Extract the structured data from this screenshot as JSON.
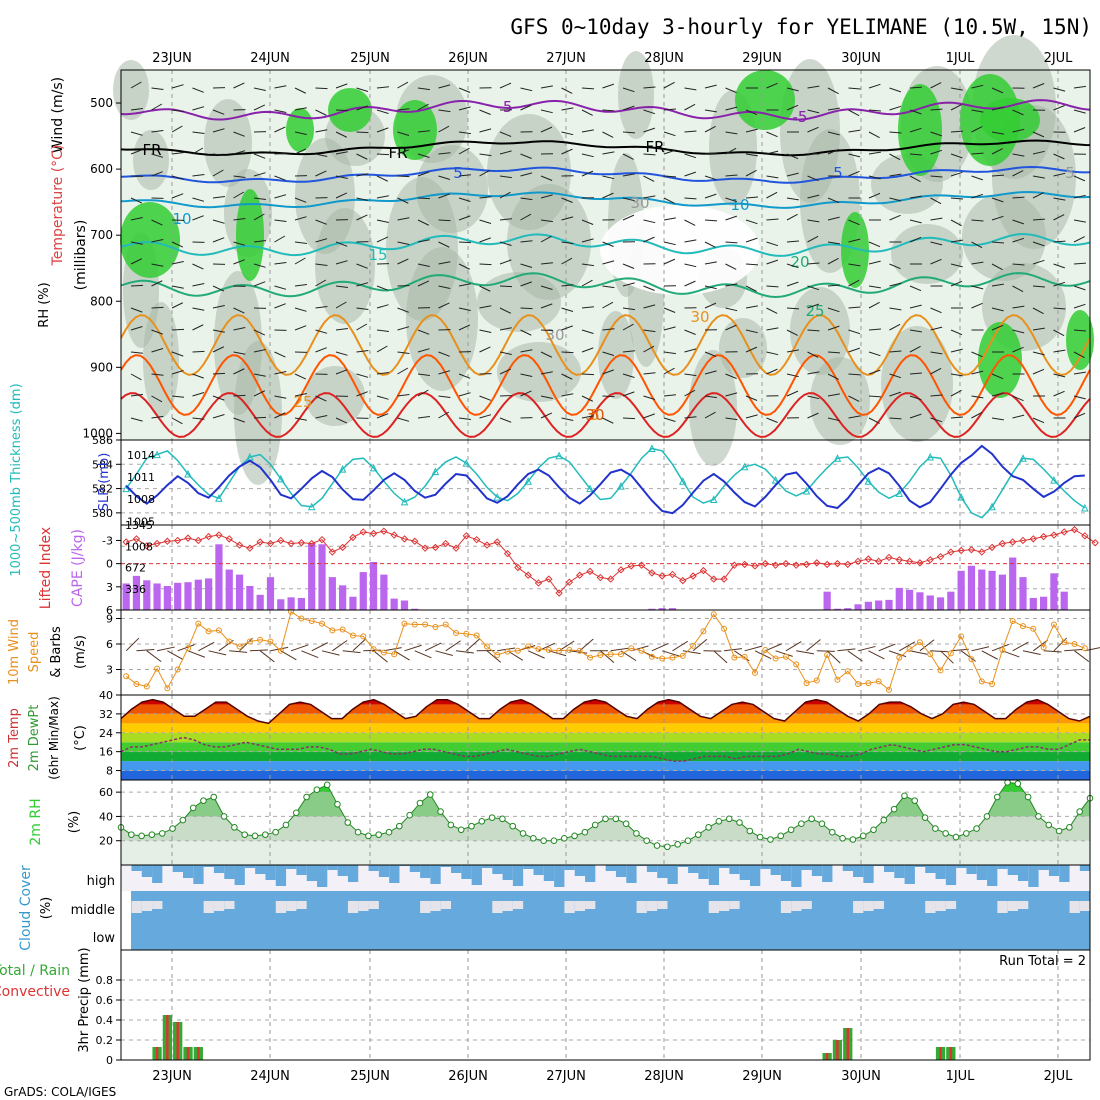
{
  "page": {
    "title": "GFS 0~10day 3-hourly for YELIMANE (10.5W, 15N)",
    "footer": "GrADS: COLA/IGES",
    "run_total": "Run Total = 2"
  },
  "time_axis": {
    "labels": [
      "23JUN",
      "24JUN",
      "25JUN",
      "26JUN",
      "27JUN",
      "28JUN",
      "29JUN",
      "30JUN",
      "1JUL",
      "2JUL"
    ],
    "note": "x values are 3-hourly steps from 22JUN 12Z (label positions at 24-hour intervals)"
  },
  "colors": {
    "rh_green": "#33cc33",
    "rh_light": "#e8f4e8",
    "rh_gray": "#a8b8a8",
    "thickness": "#22bbbb",
    "slp": "#2233cc",
    "lifted_index": "#dd3333",
    "cape_bar": "#bb66ee",
    "wind_speed": "#e8901c",
    "temp_red": "#cc0000",
    "temp_orange": "#ff8800",
    "dewpoint": "#33cc33",
    "rh2m": "#228822",
    "cloud": "#66aadd",
    "precip_total": "#33aa33",
    "precip_conv": "#dd3333"
  },
  "panels": {
    "upper_air": {
      "ylabel_wind": "Wind (m/s)",
      "ylabel_temp": "Temperature (°C)",
      "ylabel_rh": "RH (%)",
      "ylabel_units": "(millibars)",
      "yticks": [
        500,
        600,
        700,
        800,
        900,
        1000
      ],
      "contour_labels": [
        "-5",
        "-5",
        "FR",
        "FR",
        "FR",
        "5",
        "5",
        "10",
        "10",
        "15",
        "20",
        "25",
        "30",
        "5",
        "30",
        "25",
        "30",
        "30",
        "5"
      ]
    },
    "thickness_slp": {
      "ylabel_left": "1000~500mb Thickness (dm)",
      "ylabel_right": "SLP (mb)",
      "left_ticks": [
        580,
        582,
        584,
        586
      ],
      "right_ticks": [
        1005,
        1008,
        1011,
        1014
      ]
    },
    "cape_li": {
      "ylabel_left": "Lifted Index",
      "ylabel_right": "CAPE (J/kg)",
      "left_ticks": [
        -3,
        0,
        3,
        6
      ],
      "right_ticks": [
        336,
        672,
        1008,
        1345
      ]
    },
    "wind10m": {
      "ylabel_left": "10m Wind",
      "ylabel_mid": "Speed",
      "ylabel_right": "& Barbs",
      "units": "(m/s)",
      "ticks": [
        3,
        6,
        9
      ]
    },
    "temp2m": {
      "ylabel_a": "2m Temp",
      "ylabel_b": "2m DewPt",
      "ylabel_c": "(6hr Min/Max)",
      "units": "(°C)",
      "ticks": [
        8,
        16,
        24,
        32,
        40
      ]
    },
    "rh2m": {
      "ylabel": "2m RH",
      "units": "(%)",
      "ticks": [
        20,
        40,
        60
      ]
    },
    "cloud": {
      "ylabel": "Cloud Cover",
      "units": "(%)",
      "levels": [
        "high",
        "middle",
        "low"
      ]
    },
    "precip": {
      "ylabel_a": "Total / Rain",
      "ylabel_b": "Convective",
      "ylabel_c": "3hr Precip (mm)",
      "ticks": [
        0,
        0.2,
        0.4,
        0.6,
        0.8
      ]
    }
  },
  "chart_data": [
    {
      "type": "line",
      "name": "thickness",
      "title": "1000~500mb Thickness",
      "ylim": [
        579,
        586
      ],
      "x_start": "22JUN 12Z",
      "step_hours": 3,
      "values": [
        582.0,
        583.2,
        584.5,
        584.8,
        585.1,
        584.3,
        583.2,
        582.3,
        581.5,
        581.2,
        582.5,
        583.8,
        584.6,
        584.8,
        584.0,
        582.8,
        581.6,
        580.6,
        580.5,
        581.2,
        582.4,
        583.6,
        584.4,
        584.5,
        583.7,
        582.6,
        581.6,
        580.9,
        581.3,
        582.2,
        583.4,
        584.2,
        584.6,
        584.1,
        583.2,
        582.1,
        581.3,
        581.0,
        581.6,
        582.6,
        583.7,
        584.5,
        584.7,
        584.2,
        583.1,
        582.0,
        581.1,
        581.2,
        582.2,
        583.3,
        584.5,
        585.3,
        585.1,
        584.0,
        582.6,
        581.3,
        580.8,
        581.1,
        582.2,
        583.1,
        583.8,
        584.0,
        583.6,
        582.7,
        581.8,
        581.4,
        581.8,
        582.8,
        583.7,
        584.5,
        584.6,
        583.7,
        582.6,
        581.7,
        581.2,
        581.6,
        582.6,
        583.8,
        584.6,
        584.5,
        583.1,
        581.3,
        580.0,
        579.6,
        580.5,
        581.9,
        583.3,
        584.5,
        584.4,
        583.6,
        582.7,
        581.8,
        581.0,
        580.4
      ]
    },
    {
      "type": "line",
      "name": "slp",
      "title": "SLP",
      "ylim": [
        1004.5,
        1016
      ],
      "x_start": "22JUN 12Z",
      "step_hours": 3,
      "values": [
        1009.8,
        1008.4,
        1007.4,
        1008.5,
        1009.9,
        1011.1,
        1010.2,
        1008.8,
        1008.2,
        1009.6,
        1011.2,
        1012.4,
        1013.2,
        1012.3,
        1010.6,
        1008.6,
        1008.1,
        1009.4,
        1010.8,
        1011.8,
        1011.0,
        1009.3,
        1008.0,
        1007.9,
        1009.2,
        1010.6,
        1011.5,
        1010.6,
        1009.1,
        1008.2,
        1008.6,
        1010.1,
        1011.4,
        1011.2,
        1009.7,
        1008.1,
        1007.5,
        1008.4,
        1010.0,
        1011.4,
        1012.0,
        1011.2,
        1009.6,
        1008.2,
        1007.4,
        1008.5,
        1010.0,
        1011.6,
        1012.0,
        1011.2,
        1009.5,
        1007.8,
        1006.4,
        1006.1,
        1007.2,
        1008.9,
        1010.5,
        1011.4,
        1010.4,
        1008.9,
        1007.6,
        1007.0,
        1008.3,
        1009.9,
        1011.3,
        1011.6,
        1010.1,
        1008.4,
        1007.1,
        1006.8,
        1008.1,
        1009.9,
        1011.5,
        1012.2,
        1011.5,
        1009.8,
        1007.8,
        1006.9,
        1007.6,
        1009.4,
        1011.3,
        1012.9,
        1013.9,
        1015.2,
        1014.1,
        1012.4,
        1011.1,
        1010.6,
        1009.4,
        1008.3,
        1009.0,
        1010.2,
        1011.1,
        1011.2
      ]
    },
    {
      "type": "line",
      "name": "lifted_index",
      "title": "Lifted Index",
      "ylim": [
        -5,
        6
      ],
      "values": [
        -2.8,
        -3.2,
        -2.3,
        -2.6,
        -2.9,
        -3.0,
        -3.3,
        -3.0,
        -3.5,
        -3.7,
        -3.2,
        -2.4,
        -2.0,
        -2.8,
        -2.6,
        -3.0,
        -2.6,
        -2.7,
        -2.6,
        -3.1,
        -1.5,
        -2.1,
        -3.4,
        -4.1,
        -3.9,
        -4.2,
        -3.7,
        -3.2,
        -2.9,
        -2.0,
        -2.1,
        -2.6,
        -2.0,
        -3.6,
        -3.1,
        -2.4,
        -2.8,
        -1.3,
        0.5,
        1.5,
        2.5,
        2.0,
        3.8,
        2.4,
        1.5,
        1.0,
        1.8,
        2.0,
        0.8,
        0.3,
        0.2,
        1.2,
        1.6,
        1.4,
        2.2,
        1.6,
        0.9,
        2.0,
        2.0,
        0.2,
        0.1,
        0.3,
        0.0,
        0.2,
        0.0,
        0.2,
        0.1,
        -0.1,
        0.1,
        0.0,
        0.1,
        -0.3,
        -0.6,
        -0.3,
        -0.8,
        -0.5,
        -0.3,
        -0.1,
        -0.5,
        -0.9,
        -1.5,
        -1.7,
        -1.8,
        -1.5,
        -2.1,
        -2.6,
        -2.8,
        -3.0,
        -3.2,
        -3.5,
        -3.7,
        -4.1,
        -4.4,
        -3.6,
        -2.7
      ]
    },
    {
      "type": "bar",
      "name": "cape",
      "title": "CAPE",
      "ylim": [
        0,
        1345
      ],
      "values": [
        420,
        540,
        470,
        420,
        380,
        430,
        440,
        480,
        500,
        1040,
        640,
        560,
        380,
        240,
        520,
        170,
        200,
        190,
        1060,
        1040,
        520,
        390,
        210,
        600,
        760,
        560,
        180,
        150,
        20,
        0,
        0,
        0,
        0,
        0,
        0,
        0,
        0,
        0,
        0,
        0,
        0,
        0,
        0,
        0,
        0,
        0,
        0,
        0,
        0,
        0,
        0,
        20,
        30,
        30,
        0,
        0,
        0,
        0,
        0,
        0,
        0,
        0,
        0,
        0,
        0,
        0,
        0,
        0,
        290,
        20,
        30,
        90,
        130,
        150,
        160,
        350,
        320,
        280,
        230,
        200,
        290,
        620,
        700,
        640,
        620,
        560,
        830,
        520,
        190,
        210,
        580,
        290,
        0
      ]
    },
    {
      "type": "line",
      "name": "wind_speed_10m",
      "title": "10m Wind Speed",
      "ylim": [
        0,
        10
      ],
      "values": [
        2.2,
        1.3,
        1.0,
        3.1,
        0.8,
        3.0,
        5.5,
        8.4,
        7.5,
        7.6,
        6.3,
        5.7,
        6.3,
        6.5,
        6.3,
        5.2,
        9.8,
        9.0,
        8.7,
        8.4,
        7.6,
        7.7,
        7.0,
        6.9,
        5.4,
        5.0,
        4.8,
        8.4,
        8.3,
        8.3,
        8.0,
        8.3,
        7.3,
        7.2,
        7.0,
        5.7,
        4.7,
        5.1,
        5.2,
        5.7,
        5.4,
        5.3,
        5.2,
        5.3,
        5.2,
        4.4,
        4.7,
        4.8,
        4.8,
        5.5,
        5.2,
        4.5,
        4.3,
        4.4,
        4.6,
        5.8,
        7.5,
        9.5,
        7.8,
        4.4,
        4.5,
        2.6,
        5.3,
        4.3,
        4.5,
        3.6,
        1.4,
        1.7,
        4.7,
        1.8,
        2.8,
        1.3,
        1.4,
        1.6,
        0.6,
        4.4,
        5.4,
        6.2,
        4.8,
        2.9,
        4.9,
        6.9,
        4.2,
        1.6,
        1.3,
        5.3,
        8.7,
        8.1,
        7.8,
        5.6,
        8.3,
        6.2,
        6.0,
        5.5
      ]
    },
    {
      "type": "area",
      "name": "temp_2m",
      "title": "2m Temp",
      "ylim": [
        4,
        40
      ],
      "values": [
        30,
        34,
        37,
        38,
        37,
        34,
        31,
        31,
        34,
        37,
        37,
        34,
        31,
        29,
        28,
        32,
        36,
        37,
        36,
        33,
        30,
        30,
        34,
        37,
        38,
        36,
        33,
        30,
        31,
        35,
        38,
        38,
        36,
        33,
        30,
        30,
        34,
        37,
        38,
        36,
        33,
        30,
        30,
        34,
        37,
        38,
        37,
        34,
        31,
        30,
        34,
        37,
        38,
        37,
        34,
        31,
        30,
        33,
        36,
        37,
        36,
        33,
        30,
        29,
        33,
        37,
        38,
        37,
        34,
        31,
        29,
        32,
        36,
        37,
        37,
        35,
        32,
        30,
        32,
        36,
        37,
        36,
        33,
        30,
        30,
        34,
        37,
        38,
        36,
        33,
        30,
        29,
        31
      ]
    },
    {
      "type": "line",
      "name": "dewpoint_2m",
      "title": "2m DewPt",
      "ylim": [
        4,
        40
      ],
      "values": [
        16,
        18,
        18,
        19,
        20,
        21,
        22,
        21,
        19,
        18,
        18,
        19,
        20,
        19,
        18,
        17,
        17,
        17,
        18,
        18,
        17,
        15,
        15,
        16,
        17,
        16,
        15,
        15,
        16,
        17,
        17,
        16,
        15,
        14,
        14,
        15,
        16,
        17,
        16,
        15,
        14,
        14,
        15,
        16,
        17,
        16,
        15,
        14,
        14,
        14,
        14,
        14,
        13,
        12,
        12,
        13,
        14,
        14,
        14,
        13,
        14,
        14,
        14,
        14,
        15,
        17,
        16,
        15,
        15,
        14,
        14,
        15,
        17,
        18,
        19,
        18,
        17,
        16,
        17,
        18,
        19,
        19,
        18,
        17,
        16,
        16,
        17,
        18,
        18,
        17,
        17,
        19,
        21,
        21
      ]
    },
    {
      "type": "area",
      "name": "rh_2m",
      "title": "2m RH",
      "ylim": [
        0,
        70
      ],
      "values": [
        31,
        25,
        24,
        25,
        26,
        30,
        37,
        47,
        53,
        56,
        40,
        31,
        25,
        24,
        25,
        27,
        33,
        43,
        56,
        62,
        66,
        50,
        35,
        27,
        24,
        25,
        27,
        32,
        41,
        51,
        58,
        44,
        33,
        29,
        32,
        36,
        39,
        38,
        32,
        26,
        22,
        20,
        20,
        22,
        24,
        27,
        33,
        38,
        38,
        34,
        26,
        20,
        16,
        15,
        17,
        20,
        25,
        31,
        36,
        38,
        35,
        28,
        23,
        21,
        24,
        29,
        34,
        38,
        34,
        27,
        22,
        21,
        24,
        29,
        37,
        46,
        57,
        53,
        39,
        30,
        26,
        23,
        26,
        30,
        40,
        56,
        68,
        67,
        56,
        40,
        33,
        28,
        31,
        44,
        55
      ]
    },
    {
      "type": "bar",
      "name": "precip_3hr",
      "title": "3hr Precip",
      "ylim": [
        0,
        1.0
      ],
      "values": [
        0,
        0,
        0,
        0.13,
        0.45,
        0.38,
        0.13,
        0.13,
        0,
        0,
        0,
        0,
        0,
        0,
        0,
        0,
        0,
        0,
        0,
        0,
        0,
        0,
        0,
        0,
        0,
        0,
        0,
        0,
        0,
        0,
        0,
        0,
        0,
        0,
        0,
        0,
        0,
        0,
        0,
        0,
        0,
        0,
        0,
        0,
        0,
        0,
        0,
        0,
        0,
        0,
        0,
        0,
        0,
        0,
        0,
        0,
        0,
        0,
        0,
        0,
        0,
        0,
        0,
        0,
        0,
        0,
        0,
        0,
        0.07,
        0.2,
        0.32,
        0,
        0,
        0,
        0,
        0,
        0,
        0,
        0,
        0.13,
        0.13,
        0,
        0,
        0,
        0,
        0,
        0,
        0,
        0,
        0,
        0,
        0,
        0,
        0
      ]
    }
  ]
}
